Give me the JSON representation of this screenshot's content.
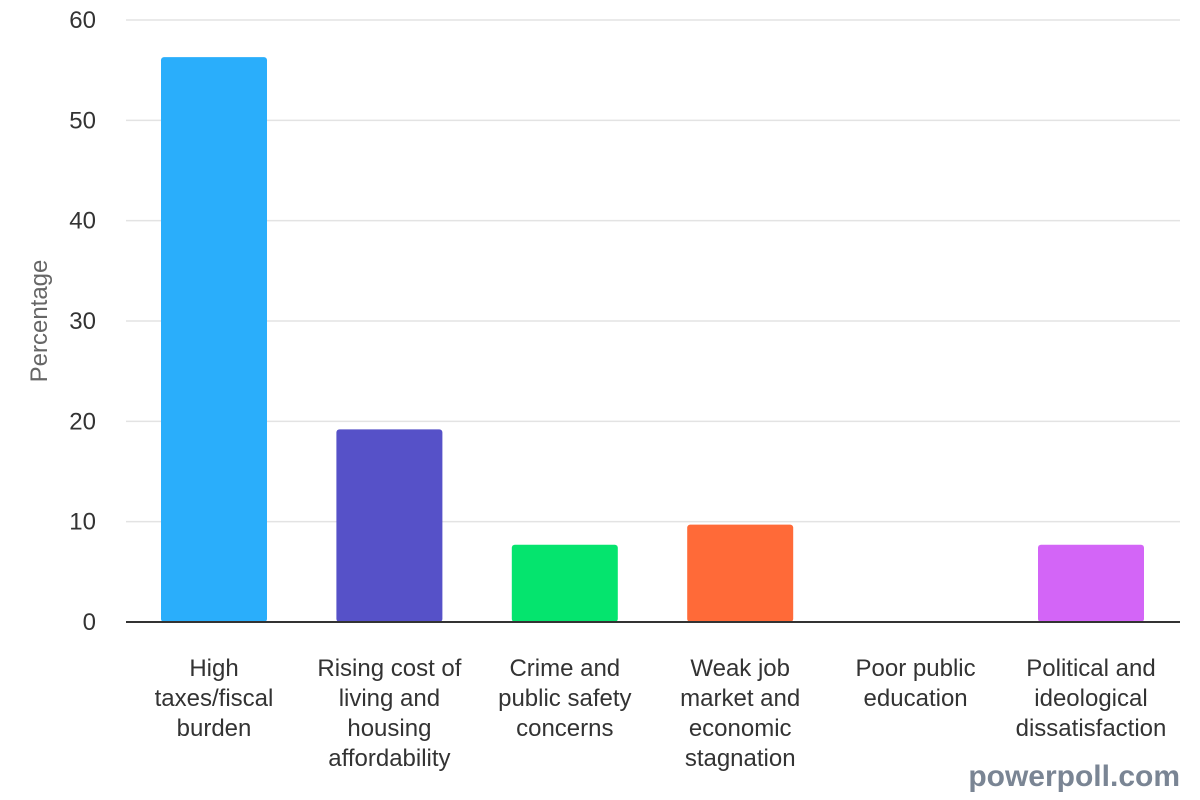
{
  "chart_data": {
    "type": "bar",
    "categories": [
      [
        "High",
        "taxes/fiscal",
        "burden"
      ],
      [
        "Rising cost of",
        "living and",
        "housing",
        "affordability"
      ],
      [
        "Crime and",
        "public safety",
        "concerns"
      ],
      [
        "Weak job",
        "market and",
        "economic",
        "stagnation"
      ],
      [
        "Poor public",
        "education"
      ],
      [
        "Political and",
        "ideological",
        "dissatisfaction"
      ]
    ],
    "values": [
      56.3,
      19.2,
      7.7,
      9.7,
      0,
      7.7
    ],
    "colors": [
      "#2aaefb",
      "#5651c8",
      "#05e46e",
      "#ff6a38",
      "#c0c0c0",
      "#d365f7"
    ],
    "ylabel": "Percentage",
    "ylim": [
      0,
      60
    ],
    "yticks": [
      0,
      10,
      20,
      30,
      40,
      50,
      60
    ],
    "grid": true
  },
  "watermark": "powerpoll.com"
}
